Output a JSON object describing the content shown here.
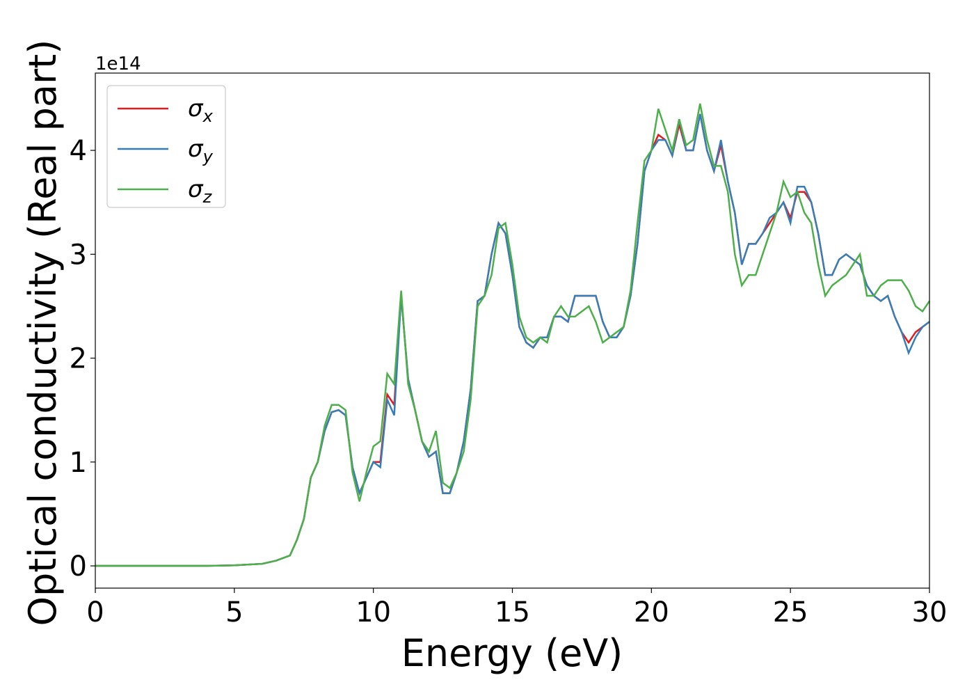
{
  "chart_data": {
    "type": "line",
    "xlabel": "Energy (eV)",
    "ylabel": "Optical conductivity (Real part)",
    "offset_label": "1e14",
    "x": [
      0,
      1,
      2,
      3,
      4,
      5,
      6,
      6.5,
      7,
      7.25,
      7.5,
      7.75,
      8,
      8.25,
      8.5,
      8.75,
      9,
      9.25,
      9.5,
      9.75,
      10,
      10.25,
      10.5,
      10.75,
      11,
      11.25,
      11.5,
      11.75,
      12,
      12.25,
      12.5,
      12.75,
      13,
      13.25,
      13.5,
      13.75,
      14,
      14.25,
      14.5,
      14.75,
      15,
      15.25,
      15.5,
      15.75,
      16,
      16.25,
      16.5,
      16.75,
      17,
      17.25,
      17.5,
      17.75,
      18,
      18.25,
      18.5,
      18.75,
      19,
      19.25,
      19.5,
      19.75,
      20,
      20.25,
      20.5,
      20.75,
      21,
      21.25,
      21.5,
      21.75,
      22,
      22.25,
      22.5,
      22.75,
      23,
      23.25,
      23.5,
      23.75,
      24,
      24.25,
      24.5,
      24.75,
      25,
      25.25,
      25.5,
      25.75,
      26,
      26.25,
      26.5,
      26.75,
      27,
      27.25,
      27.5,
      27.75,
      28,
      28.25,
      28.5,
      28.75,
      29,
      29.25,
      29.5,
      29.75,
      30
    ],
    "series": [
      {
        "name": "σx",
        "color": "#e41a1c",
        "values": [
          0,
          0,
          0,
          0,
          0,
          0.005,
          0.02,
          0.05,
          0.1,
          0.25,
          0.45,
          0.85,
          1.0,
          1.3,
          1.48,
          1.5,
          1.45,
          0.95,
          0.7,
          0.85,
          1.0,
          1.0,
          1.65,
          1.55,
          2.6,
          1.8,
          1.5,
          1.2,
          1.05,
          1.1,
          0.7,
          0.7,
          0.9,
          1.2,
          1.7,
          2.55,
          2.6,
          3.0,
          3.3,
          3.2,
          2.8,
          2.3,
          2.15,
          2.1,
          2.2,
          2.2,
          2.4,
          2.4,
          2.35,
          2.6,
          2.6,
          2.6,
          2.6,
          2.35,
          2.2,
          2.2,
          2.3,
          2.6,
          3.1,
          3.8,
          4.0,
          4.15,
          4.1,
          3.95,
          4.25,
          4.0,
          4.0,
          4.35,
          4.0,
          3.8,
          4.05,
          3.7,
          3.4,
          2.9,
          3.1,
          3.1,
          3.2,
          3.3,
          3.4,
          3.5,
          3.35,
          3.6,
          3.6,
          3.5,
          3.2,
          2.8,
          2.8,
          2.95,
          3.0,
          2.95,
          2.9,
          2.7,
          2.6,
          2.55,
          2.6,
          2.4,
          2.25,
          2.15,
          2.25,
          2.3,
          2.35
        ]
      },
      {
        "name": "σy",
        "color": "#377eb8",
        "values": [
          0,
          0,
          0,
          0,
          0,
          0.005,
          0.02,
          0.05,
          0.1,
          0.25,
          0.45,
          0.85,
          1.0,
          1.3,
          1.48,
          1.5,
          1.45,
          0.95,
          0.7,
          0.85,
          1.0,
          0.95,
          1.6,
          1.45,
          2.6,
          1.8,
          1.5,
          1.2,
          1.05,
          1.1,
          0.7,
          0.7,
          0.9,
          1.2,
          1.7,
          2.55,
          2.6,
          3.0,
          3.3,
          3.2,
          2.8,
          2.3,
          2.15,
          2.1,
          2.2,
          2.2,
          2.4,
          2.4,
          2.35,
          2.6,
          2.6,
          2.6,
          2.6,
          2.35,
          2.2,
          2.2,
          2.3,
          2.6,
          3.1,
          3.8,
          4.0,
          4.1,
          4.1,
          3.95,
          4.3,
          4.0,
          4.0,
          4.35,
          4.0,
          3.8,
          4.1,
          3.7,
          3.4,
          2.9,
          3.1,
          3.1,
          3.2,
          3.35,
          3.4,
          3.5,
          3.3,
          3.65,
          3.65,
          3.5,
          3.2,
          2.8,
          2.8,
          2.95,
          3.0,
          2.95,
          2.9,
          2.7,
          2.6,
          2.55,
          2.6,
          2.4,
          2.25,
          2.05,
          2.2,
          2.3,
          2.35
        ]
      },
      {
        "name": "σz",
        "color": "#4daf4a",
        "values": [
          0,
          0,
          0,
          0,
          0,
          0.005,
          0.02,
          0.05,
          0.1,
          0.25,
          0.45,
          0.85,
          1.0,
          1.35,
          1.55,
          1.55,
          1.5,
          0.9,
          0.62,
          0.9,
          1.15,
          1.2,
          1.85,
          1.75,
          2.65,
          1.75,
          1.5,
          1.2,
          1.1,
          1.3,
          0.8,
          0.75,
          0.9,
          1.1,
          1.6,
          2.5,
          2.6,
          2.8,
          3.25,
          3.3,
          2.9,
          2.4,
          2.2,
          2.15,
          2.2,
          2.15,
          2.4,
          2.5,
          2.4,
          2.4,
          2.45,
          2.5,
          2.35,
          2.15,
          2.2,
          2.25,
          2.3,
          2.65,
          3.3,
          3.9,
          4.0,
          4.4,
          4.2,
          4.0,
          4.3,
          4.05,
          4.1,
          4.45,
          4.1,
          3.85,
          3.85,
          3.6,
          3.0,
          2.7,
          2.8,
          2.8,
          3.0,
          3.2,
          3.4,
          3.7,
          3.55,
          3.6,
          3.4,
          3.3,
          2.9,
          2.6,
          2.7,
          2.75,
          2.8,
          2.9,
          3.0,
          2.6,
          2.6,
          2.7,
          2.75,
          2.75,
          2.75,
          2.65,
          2.5,
          2.45,
          2.55
        ]
      }
    ],
    "xlim": [
      0,
      30
    ],
    "xticks": [
      0,
      5,
      10,
      15,
      20,
      25,
      30
    ],
    "ylim": [
      -0.214,
      4.744
    ],
    "yticks": [
      0,
      1,
      2,
      3,
      4
    ],
    "grid": false,
    "legend": "upper left"
  }
}
